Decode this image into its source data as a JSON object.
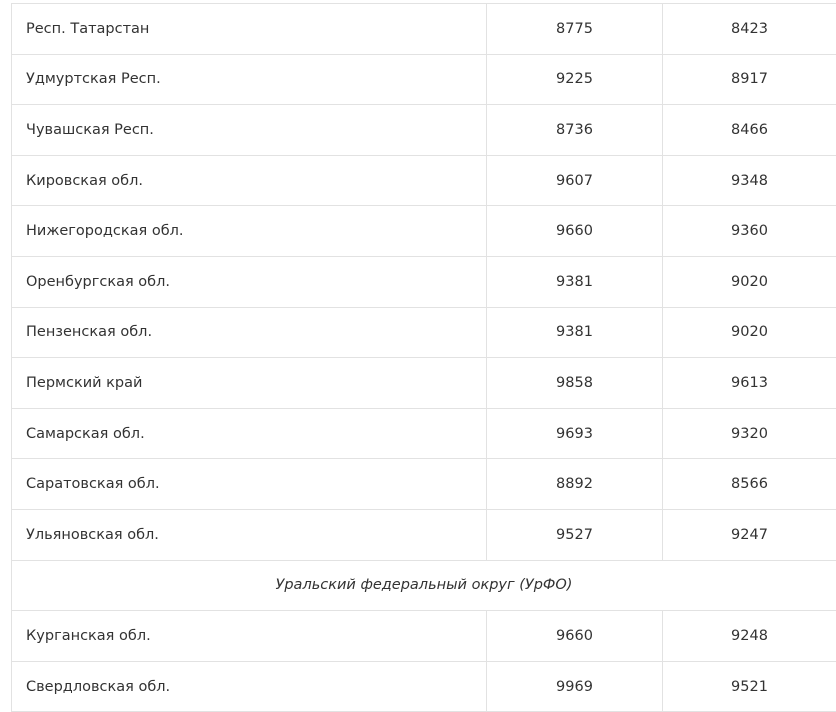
{
  "rows": [
    {
      "type": "data",
      "name": "Респ. Татарстан",
      "v1": "8775",
      "v2": "8423"
    },
    {
      "type": "data",
      "name": "Удмуртская Респ.",
      "v1": "9225",
      "v2": "8917"
    },
    {
      "type": "data",
      "name": "Чувашская Респ.",
      "v1": "8736",
      "v2": "8466"
    },
    {
      "type": "data",
      "name": "Кировская обл.",
      "v1": "9607",
      "v2": "9348"
    },
    {
      "type": "data",
      "name": "Нижегородская обл.",
      "v1": "9660",
      "v2": "9360"
    },
    {
      "type": "data",
      "name": "Оренбургская обл.",
      "v1": "9381",
      "v2": "9020"
    },
    {
      "type": "data",
      "name": "Пензенская обл.",
      "v1": "9381",
      "v2": "9020"
    },
    {
      "type": "data",
      "name": "Пермский край",
      "v1": "9858",
      "v2": "9613"
    },
    {
      "type": "data",
      "name": "Самарская обл.",
      "v1": "9693",
      "v2": "9320"
    },
    {
      "type": "data",
      "name": "Саратовская обл.",
      "v1": "8892",
      "v2": "8566"
    },
    {
      "type": "data",
      "name": "Ульяновская обл.",
      "v1": "9527",
      "v2": "9247"
    },
    {
      "type": "group",
      "name": "Уральский федеральный округ (УрФО)"
    },
    {
      "type": "data",
      "name": "Курганская обл.",
      "v1": "9660",
      "v2": "9248"
    },
    {
      "type": "data",
      "name": "Свердловская обл.",
      "v1": "9969",
      "v2": "9521"
    }
  ]
}
